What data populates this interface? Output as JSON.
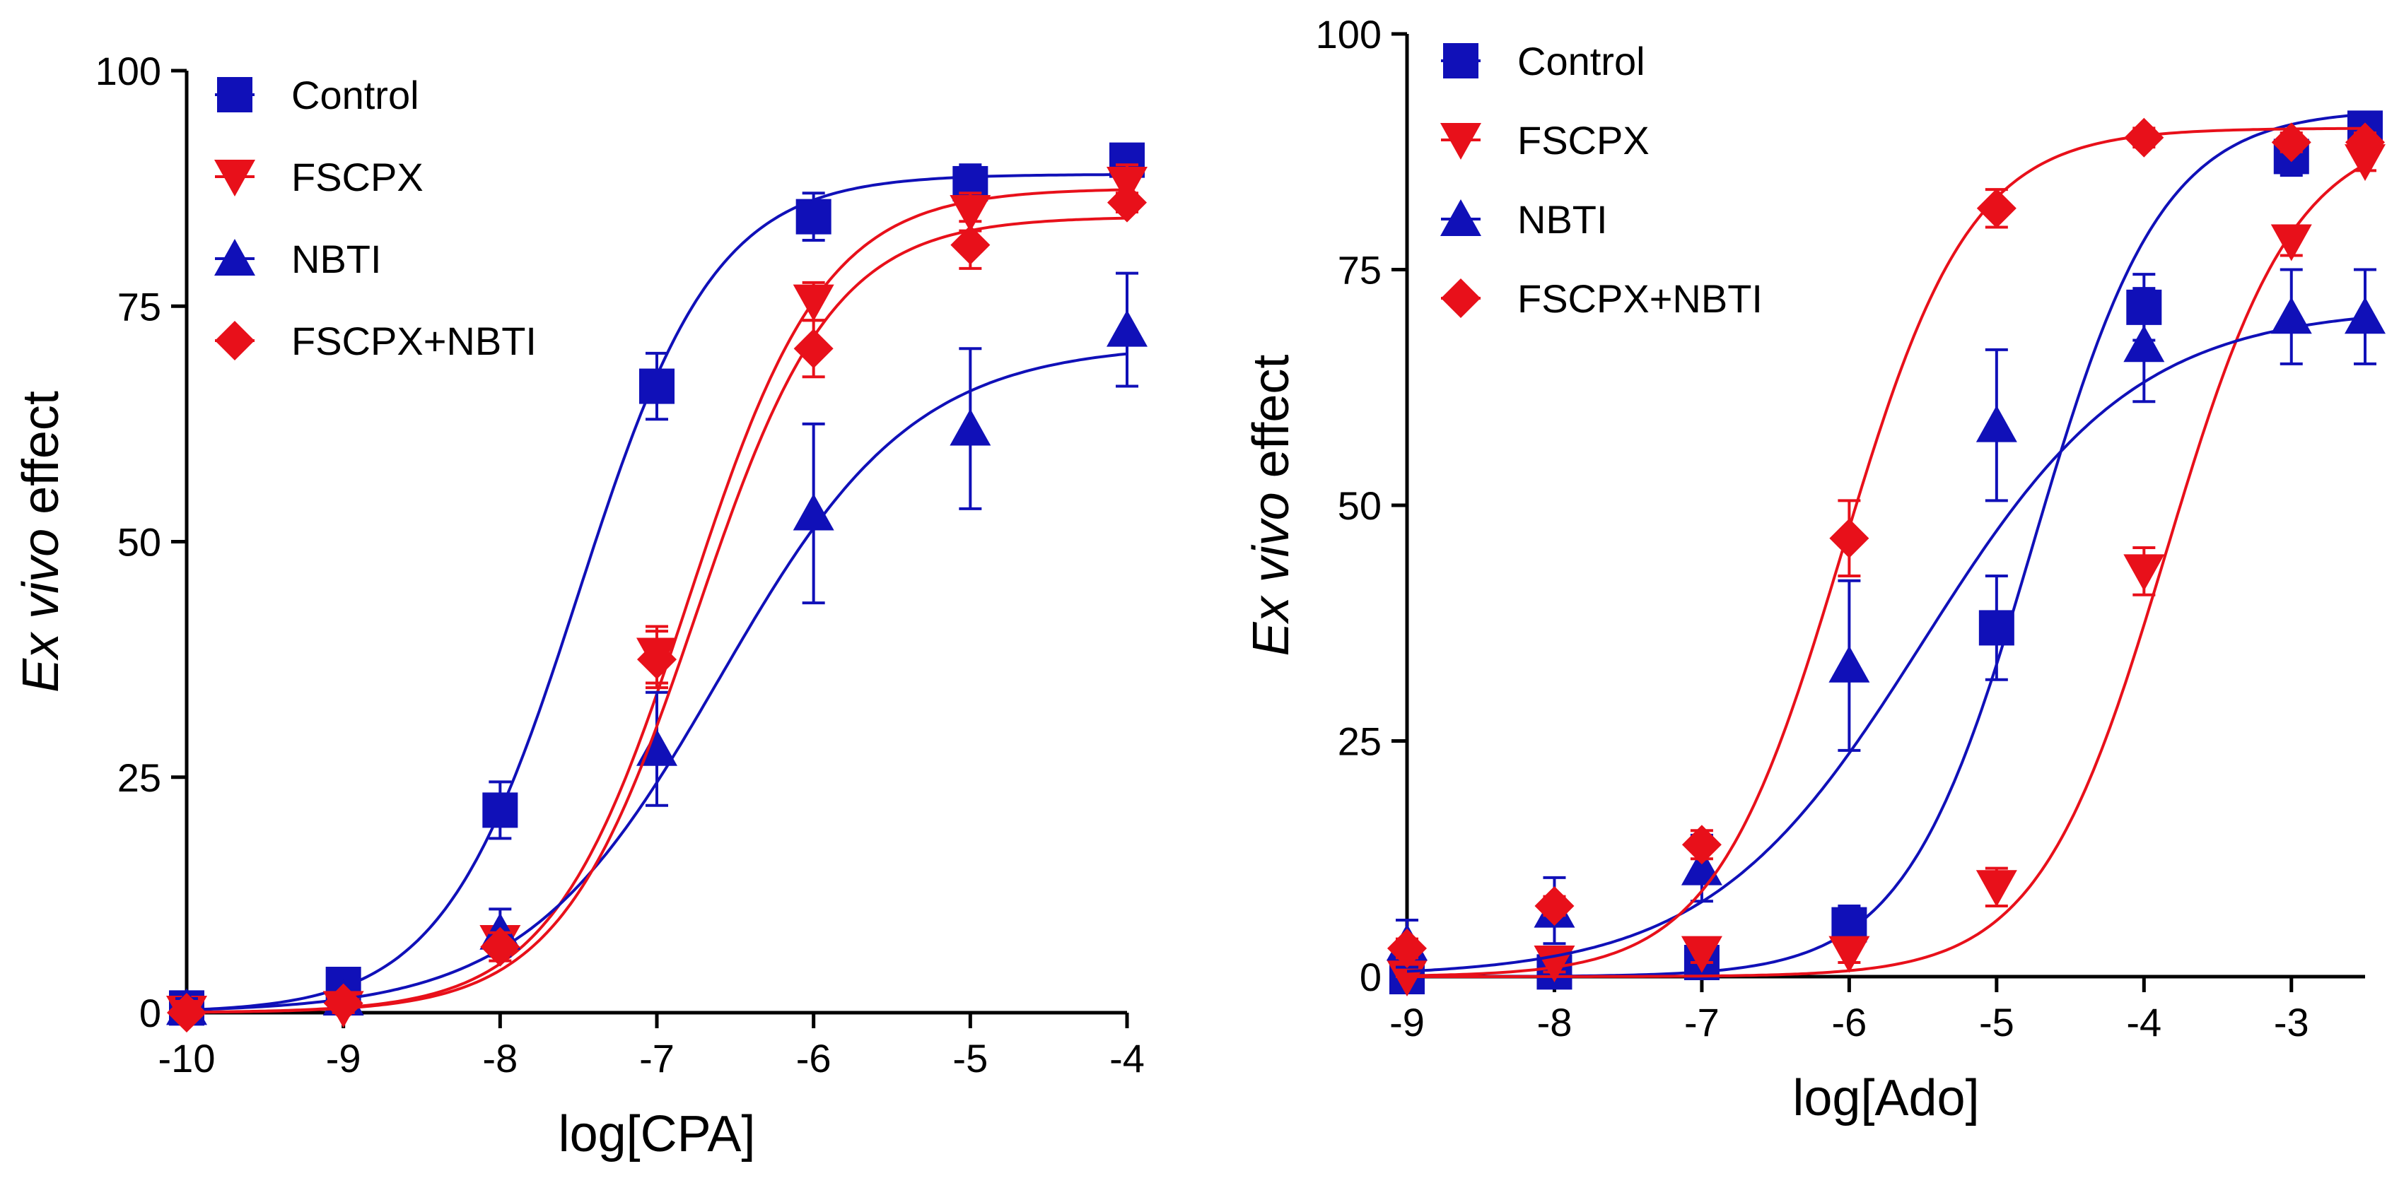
{
  "chart_data": [
    {
      "type": "line",
      "title": "",
      "xlabel": "log[CPA]",
      "ylabel_italic": "Ex vivo",
      "ylabel_rest": " effect",
      "xlim": [
        -10,
        -4
      ],
      "ylim": [
        0,
        100
      ],
      "xticks": [
        -10,
        -9,
        -8,
        -7,
        -6,
        -5,
        -4
      ],
      "xtick_labels": [
        "-10",
        "-9",
        "-8",
        "-7",
        "-6",
        "-5",
        "-4"
      ],
      "yticks": [
        0,
        25,
        50,
        75,
        100
      ],
      "ytick_labels": [
        "0",
        "25",
        "50",
        "75",
        "100"
      ],
      "grid": false,
      "legend_position": "top-left",
      "series": [
        {
          "name": "Control",
          "color": "#1010b8",
          "marker": "square",
          "x": [
            -10,
            -9,
            -8,
            -7,
            -6,
            -5,
            -4
          ],
          "y": [
            0.5,
            3,
            21.5,
            66.5,
            84.5,
            88,
            90.5
          ],
          "err": [
            1,
            1,
            3,
            3.5,
            2.5,
            2,
            1.5
          ],
          "fit": {
            "bottom": 0,
            "top": 89,
            "logEC50": -7.5,
            "hill": 1.0
          }
        },
        {
          "name": "FSCPX",
          "color": "#e8101a",
          "marker": "triangle-down",
          "x": [
            -10,
            -9,
            -8,
            -7,
            -6,
            -5,
            -4
          ],
          "y": [
            0,
            0.5,
            7.5,
            38,
            75.5,
            85,
            88
          ],
          "err": [
            1,
            1,
            1.5,
            3,
            2,
            2,
            2
          ],
          "fit": {
            "bottom": 0,
            "top": 87.5,
            "logEC50": -6.8,
            "hill": 1.0
          }
        },
        {
          "name": "NBTI",
          "color": "#1010b8",
          "marker": "triangle-up",
          "x": [
            -10,
            -9,
            -8,
            -7,
            -6,
            -5,
            -4
          ],
          "y": [
            0.5,
            1.5,
            8.5,
            28,
            53,
            62,
            72.5
          ],
          "err": [
            1,
            1,
            2.5,
            6,
            9.5,
            8.5,
            6
          ],
          "fit": {
            "bottom": 0,
            "top": 71,
            "logEC50": -6.6,
            "hill": 0.7
          }
        },
        {
          "name": "FSCPX+NBTI",
          "color": "#e8101a",
          "marker": "diamond",
          "x": [
            -10,
            -9,
            -8,
            -7,
            -6,
            -5,
            -4
          ],
          "y": [
            0,
            1,
            7,
            37.5,
            70.5,
            81.5,
            86
          ],
          "err": [
            1,
            1,
            1.5,
            3,
            3,
            2.5,
            1
          ],
          "fit": {
            "bottom": 0,
            "top": 84.5,
            "logEC50": -6.75,
            "hill": 1.0
          }
        }
      ]
    },
    {
      "type": "line",
      "title": "",
      "xlabel": "log[Ado]",
      "ylabel_italic": "Ex vivo",
      "ylabel_rest": " effect",
      "xlim": [
        -9,
        -2.5
      ],
      "ylim": [
        0,
        100
      ],
      "xticks": [
        -9,
        -8,
        -7,
        -6,
        -5,
        -4,
        -3
      ],
      "xtick_labels": [
        "-9",
        "-8",
        "-7",
        "-6",
        "-5",
        "-4",
        "-3"
      ],
      "yticks": [
        0,
        25,
        50,
        75,
        100
      ],
      "ytick_labels": [
        "0",
        "25",
        "50",
        "75",
        "100"
      ],
      "grid": false,
      "legend_position": "top-left",
      "series": [
        {
          "name": "Control",
          "color": "#1010b8",
          "marker": "square",
          "x": [
            -9,
            -8,
            -7,
            -6,
            -5,
            -4,
            -3,
            -2.5
          ],
          "y": [
            0,
            0.5,
            1.5,
            5.5,
            37,
            71,
            87,
            90
          ],
          "err": [
            1,
            1,
            1,
            2,
            5.5,
            3.5,
            2,
            1
          ],
          "fit": {
            "bottom": 0,
            "top": 92,
            "logEC50": -4.75,
            "hill": 1.0
          }
        },
        {
          "name": "FSCPX",
          "color": "#e8101a",
          "marker": "triangle-down",
          "x": [
            -9,
            -8,
            -7,
            -6,
            -5,
            -4,
            -3,
            -2.5
          ],
          "y": [
            0,
            1.5,
            2.5,
            2.5,
            9.5,
            43,
            78,
            86.5
          ],
          "err": [
            1,
            1,
            1,
            1,
            2,
            2.5,
            1.5,
            1
          ],
          "fit": {
            "bottom": 0,
            "top": 90,
            "logEC50": -3.85,
            "hill": 1.0
          }
        },
        {
          "name": "NBTI",
          "color": "#1010b8",
          "marker": "triangle-up",
          "x": [
            -9,
            -8,
            -7,
            -6,
            -5,
            -4,
            -3,
            -2.5
          ],
          "y": [
            3.5,
            7,
            11.5,
            33,
            58.5,
            67,
            70,
            70
          ],
          "err": [
            2.5,
            3.5,
            3.5,
            9,
            8,
            6,
            5,
            5
          ],
          "fit": {
            "bottom": 0,
            "top": 71,
            "logEC50": -5.5,
            "hill": 0.6
          }
        },
        {
          "name": "FSCPX+NBTI",
          "color": "#e8101a",
          "marker": "diamond",
          "x": [
            -9,
            -8,
            -7,
            -6,
            -5,
            -4,
            -3,
            -2.5
          ],
          "y": [
            3,
            7.5,
            14,
            46.5,
            81.5,
            89,
            88.5,
            88.5
          ],
          "err": [
            1,
            1,
            1.5,
            4,
            2,
            1,
            1,
            1
          ],
          "fit": {
            "bottom": 0,
            "top": 90,
            "logEC50": -6.05,
            "hill": 1.0
          }
        }
      ]
    }
  ]
}
